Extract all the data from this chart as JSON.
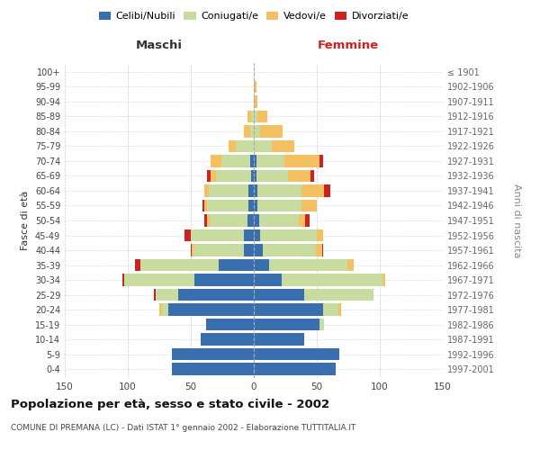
{
  "age_groups": [
    "0-4",
    "5-9",
    "10-14",
    "15-19",
    "20-24",
    "25-29",
    "30-34",
    "35-39",
    "40-44",
    "45-49",
    "50-54",
    "55-59",
    "60-64",
    "65-69",
    "70-74",
    "75-79",
    "80-84",
    "85-89",
    "90-94",
    "95-99",
    "100+"
  ],
  "birth_years": [
    "1997-2001",
    "1992-1996",
    "1987-1991",
    "1982-1986",
    "1977-1981",
    "1972-1976",
    "1967-1971",
    "1962-1966",
    "1957-1961",
    "1952-1956",
    "1947-1951",
    "1942-1946",
    "1937-1941",
    "1932-1936",
    "1927-1931",
    "1922-1926",
    "1917-1921",
    "1912-1916",
    "1907-1911",
    "1902-1906",
    "≤ 1901"
  ],
  "male": {
    "celibi": [
      65,
      65,
      42,
      38,
      68,
      60,
      47,
      28,
      8,
      8,
      5,
      4,
      4,
      2,
      3,
      0,
      0,
      0,
      0,
      0,
      0
    ],
    "coniugati": [
      0,
      0,
      0,
      0,
      5,
      18,
      56,
      62,
      40,
      42,
      30,
      33,
      32,
      28,
      23,
      14,
      3,
      2,
      0,
      0,
      0
    ],
    "vedovi": [
      0,
      0,
      0,
      0,
      2,
      0,
      0,
      0,
      1,
      0,
      2,
      2,
      3,
      4,
      8,
      6,
      5,
      3,
      0,
      0,
      0
    ],
    "divorziati": [
      0,
      0,
      0,
      0,
      0,
      1,
      1,
      4,
      1,
      5,
      2,
      2,
      0,
      3,
      0,
      0,
      0,
      0,
      0,
      0,
      0
    ]
  },
  "female": {
    "nubili": [
      65,
      68,
      40,
      52,
      55,
      40,
      22,
      12,
      7,
      5,
      4,
      3,
      3,
      2,
      2,
      0,
      0,
      0,
      0,
      0,
      0
    ],
    "coniugate": [
      0,
      0,
      0,
      4,
      12,
      55,
      80,
      62,
      42,
      45,
      32,
      35,
      35,
      25,
      22,
      14,
      5,
      3,
      1,
      0,
      0
    ],
    "vedove": [
      0,
      0,
      0,
      0,
      2,
      0,
      2,
      5,
      5,
      5,
      5,
      12,
      18,
      18,
      28,
      18,
      18,
      8,
      2,
      2,
      0
    ],
    "divorziate": [
      0,
      0,
      0,
      0,
      0,
      0,
      0,
      0,
      1,
      0,
      3,
      0,
      5,
      3,
      3,
      0,
      0,
      0,
      0,
      0,
      0
    ]
  },
  "colors": {
    "celibi": "#3a6faf",
    "coniugati": "#c8dca0",
    "vedovi": "#f5c060",
    "divorziati": "#cc2222"
  },
  "xlim": 150,
  "title": "Popolazione per età, sesso e stato civile - 2002",
  "subtitle": "COMUNE DI PREMANA (LC) - Dati ISTAT 1° gennaio 2002 - Elaborazione TUTTITALIA.IT",
  "ylabel_left": "Fasce di età",
  "ylabel_right": "Anni di nascita",
  "xlabel_left": "Maschi",
  "xlabel_right": "Femmine",
  "background_color": "#ffffff",
  "grid_color": "#bbbbbb"
}
